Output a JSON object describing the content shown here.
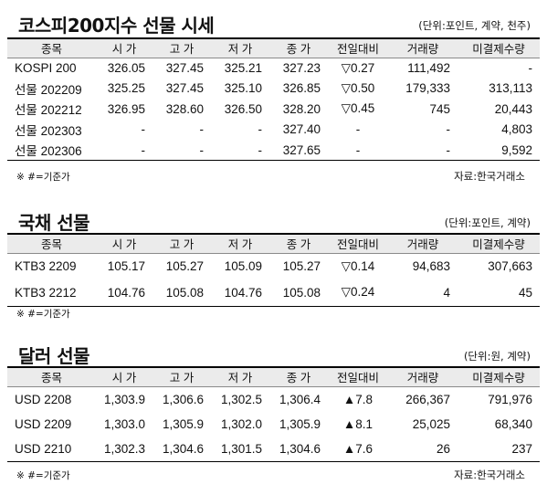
{
  "kospi": {
    "title": "코스피200지수 선물 시세",
    "unit": "(단위:포인트, 계약, 천주)",
    "headers": [
      "종목",
      "시 가",
      "고 가",
      "저 가",
      "종 가",
      "전일대비",
      "거래량",
      "미결제수량"
    ],
    "rows": [
      [
        "KOSPI 200",
        "326.05",
        "327.45",
        "325.21",
        "327.23",
        "▽0.27",
        "111,492",
        "-"
      ],
      [
        "선물 202209",
        "325.25",
        "327.45",
        "325.10",
        "326.85",
        "▽0.50",
        "179,333",
        "313,113"
      ],
      [
        "선물 202212",
        "326.95",
        "328.60",
        "326.50",
        "328.20",
        "▽0.45",
        "745",
        "20,443"
      ],
      [
        "선물 202303",
        "-",
        "-",
        "-",
        "327.40",
        "-",
        "-",
        "4,803"
      ],
      [
        "선물 202306",
        "-",
        "-",
        "-",
        "327.65",
        "-",
        "-",
        "9,592"
      ]
    ],
    "note": "※ #=기준가",
    "source": "자료:한국거래소"
  },
  "bond": {
    "title": "국채 선물",
    "unit": "(단위:포인트, 계약)",
    "headers": [
      "종목",
      "시 가",
      "고 가",
      "저 가",
      "종 가",
      "전일대비",
      "거래량",
      "미결제수량"
    ],
    "rows": [
      [
        "KTB3 2209",
        "105.17",
        "105.27",
        "105.09",
        "105.27",
        "▽0.14",
        "94,683",
        "307,663"
      ],
      [
        "KTB3 2212",
        "104.76",
        "105.08",
        "104.76",
        "105.08",
        "▽0.24",
        "4",
        "45"
      ]
    ],
    "note": "※ #=기준가"
  },
  "dollar": {
    "title": "달러 선물",
    "unit": "(단위:원, 계약)",
    "headers": [
      "종목",
      "시 가",
      "고 가",
      "저 가",
      "종 가",
      "전일대비",
      "거래량",
      "미결제수량"
    ],
    "rows": [
      [
        "USD 2208",
        "1,303.9",
        "1,306.6",
        "1,302.5",
        "1,306.4",
        "▲7.8",
        "266,367",
        "791,976"
      ],
      [
        "USD 2209",
        "1,303.0",
        "1,305.9",
        "1,302.0",
        "1,305.9",
        "▲8.1",
        "25,025",
        "68,340"
      ],
      [
        "USD 2210",
        "1,302.3",
        "1,304.6",
        "1,301.5",
        "1,304.6",
        "▲7.6",
        "26",
        "237"
      ]
    ],
    "note": "※ #=기준가",
    "source": "자료:한국거래소"
  }
}
